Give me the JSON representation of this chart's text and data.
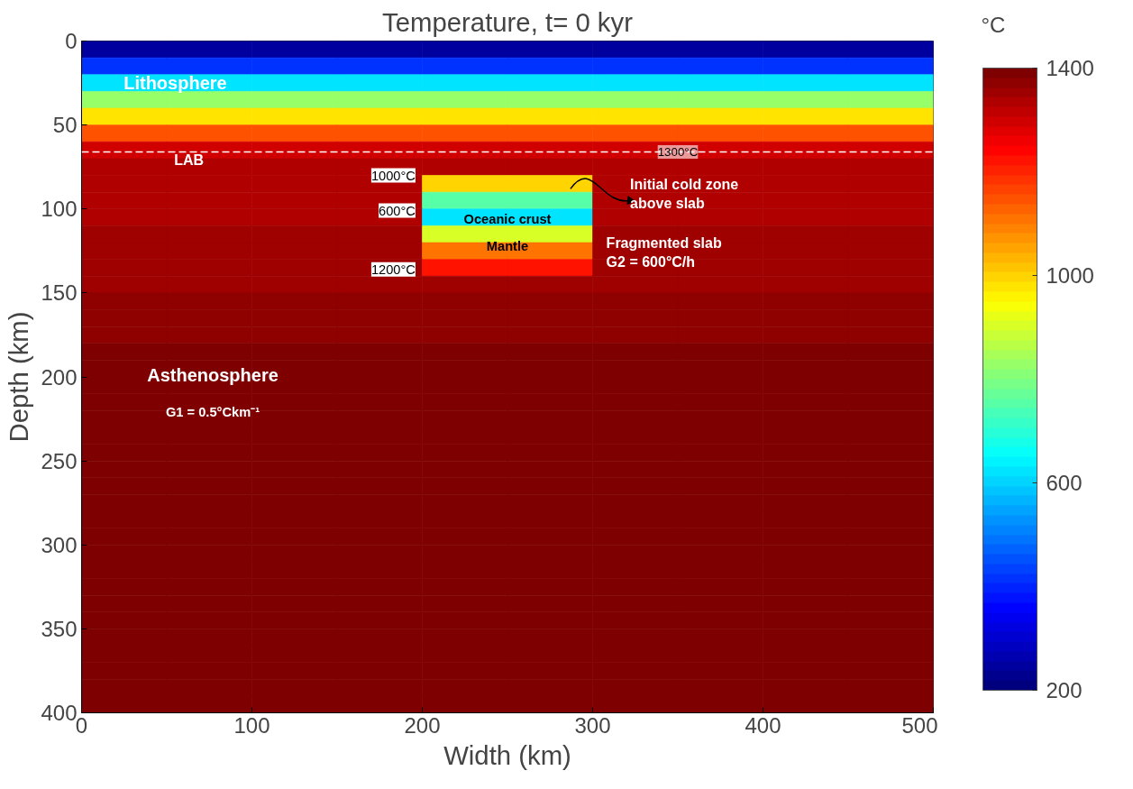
{
  "chart_data": {
    "type": "heatmap",
    "title": "Temperature, t= 0 kyr",
    "xlabel": "Width (km)",
    "ylabel": "Depth (km)",
    "clabel": "°C",
    "x": [
      25,
      75,
      125,
      175,
      225,
      275,
      325,
      375,
      425,
      475
    ],
    "y": [
      5,
      15,
      25,
      35,
      45,
      55,
      65,
      75,
      85,
      95,
      105,
      115,
      125,
      135,
      145,
      155,
      165,
      175,
      185,
      195,
      205,
      215,
      225,
      235,
      245,
      255,
      265,
      275,
      285,
      295,
      305,
      315,
      325,
      335,
      345,
      355,
      365,
      375,
      385,
      395
    ],
    "cells": [
      [
        250,
        250,
        250,
        250,
        250,
        250,
        250,
        250,
        250,
        250
      ],
      [
        420,
        420,
        420,
        420,
        420,
        420,
        420,
        420,
        420,
        420
      ],
      [
        620,
        620,
        620,
        620,
        620,
        620,
        620,
        620,
        620,
        620
      ],
      [
        820,
        820,
        820,
        820,
        820,
        820,
        820,
        820,
        820,
        820
      ],
      [
        980,
        980,
        980,
        980,
        980,
        980,
        980,
        980,
        980,
        980
      ],
      [
        1150,
        1150,
        1150,
        1150,
        1150,
        1150,
        1150,
        1150,
        1150,
        1150
      ],
      [
        1290,
        1290,
        1290,
        1290,
        1290,
        1290,
        1290,
        1290,
        1290,
        1290
      ],
      [
        1330,
        1330,
        1330,
        1330,
        1330,
        1330,
        1330,
        1330,
        1330,
        1330
      ],
      [
        1330,
        1330,
        1330,
        1330,
        1000,
        1000,
        1330,
        1330,
        1330,
        1330
      ],
      [
        1330,
        1330,
        1330,
        1330,
        750,
        750,
        1330,
        1330,
        1330,
        1330
      ],
      [
        1340,
        1340,
        1340,
        1340,
        620,
        620,
        1340,
        1340,
        1340,
        1340
      ],
      [
        1350,
        1350,
        1350,
        1350,
        900,
        900,
        1350,
        1350,
        1350,
        1350
      ],
      [
        1350,
        1350,
        1350,
        1350,
        1100,
        1100,
        1350,
        1350,
        1350,
        1350
      ],
      [
        1350,
        1350,
        1350,
        1350,
        1220,
        1220,
        1350,
        1350,
        1350,
        1350
      ],
      [
        1360,
        1360,
        1360,
        1360,
        1360,
        1360,
        1360,
        1360,
        1360,
        1360
      ],
      [
        1370,
        1370,
        1370,
        1370,
        1370,
        1370,
        1370,
        1370,
        1370,
        1370
      ],
      [
        1370,
        1370,
        1370,
        1370,
        1370,
        1370,
        1370,
        1370,
        1370,
        1370
      ],
      [
        1370,
        1370,
        1370,
        1370,
        1370,
        1370,
        1370,
        1370,
        1370,
        1370
      ],
      [
        1400,
        1400,
        1400,
        1400,
        1400,
        1400,
        1400,
        1400,
        1400,
        1400
      ],
      [
        1400,
        1400,
        1400,
        1400,
        1400,
        1400,
        1400,
        1400,
        1400,
        1400
      ],
      [
        1400,
        1400,
        1400,
        1400,
        1400,
        1400,
        1400,
        1400,
        1400,
        1400
      ],
      [
        1400,
        1400,
        1400,
        1400,
        1400,
        1400,
        1400,
        1400,
        1400,
        1400
      ],
      [
        1400,
        1400,
        1400,
        1400,
        1400,
        1400,
        1400,
        1400,
        1400,
        1400
      ],
      [
        1400,
        1400,
        1400,
        1400,
        1400,
        1400,
        1400,
        1400,
        1400,
        1400
      ],
      [
        1400,
        1400,
        1400,
        1400,
        1400,
        1400,
        1400,
        1400,
        1400,
        1400
      ],
      [
        1400,
        1400,
        1400,
        1400,
        1400,
        1400,
        1400,
        1400,
        1400,
        1400
      ],
      [
        1400,
        1400,
        1400,
        1400,
        1400,
        1400,
        1400,
        1400,
        1400,
        1400
      ],
      [
        1400,
        1400,
        1400,
        1400,
        1400,
        1400,
        1400,
        1400,
        1400,
        1400
      ],
      [
        1400,
        1400,
        1400,
        1400,
        1400,
        1400,
        1400,
        1400,
        1400,
        1400
      ],
      [
        1400,
        1400,
        1400,
        1400,
        1400,
        1400,
        1400,
        1400,
        1400,
        1400
      ],
      [
        1400,
        1400,
        1400,
        1400,
        1400,
        1400,
        1400,
        1400,
        1400,
        1400
      ],
      [
        1400,
        1400,
        1400,
        1400,
        1400,
        1400,
        1400,
        1400,
        1400,
        1400
      ],
      [
        1400,
        1400,
        1400,
        1400,
        1400,
        1400,
        1400,
        1400,
        1400,
        1400
      ],
      [
        1400,
        1400,
        1400,
        1400,
        1400,
        1400,
        1400,
        1400,
        1400,
        1400
      ],
      [
        1400,
        1400,
        1400,
        1400,
        1400,
        1400,
        1400,
        1400,
        1400,
        1400
      ],
      [
        1400,
        1400,
        1400,
        1400,
        1400,
        1400,
        1400,
        1400,
        1400,
        1400
      ],
      [
        1400,
        1400,
        1400,
        1400,
        1400,
        1400,
        1400,
        1400,
        1400,
        1400
      ],
      [
        1400,
        1400,
        1400,
        1400,
        1400,
        1400,
        1400,
        1400,
        1400,
        1400
      ],
      [
        1400,
        1400,
        1400,
        1400,
        1400,
        1400,
        1400,
        1400,
        1400,
        1400
      ],
      [
        1400,
        1400,
        1400,
        1400,
        1400,
        1400,
        1400,
        1400,
        1400,
        1400
      ]
    ],
    "clim": [
      200,
      1400
    ],
    "cticks": [
      200,
      600,
      1000,
      1400
    ],
    "xlim": [
      0,
      500
    ],
    "ylim": [
      400,
      0
    ],
    "xticks": [
      0,
      100,
      200,
      300,
      400,
      500
    ],
    "yticks": [
      0,
      50,
      100,
      150,
      200,
      250,
      300,
      350,
      400
    ],
    "grid": false,
    "ref_lines": [
      {
        "axis": "y",
        "value": 66,
        "label": "1300°C",
        "color": "#ffffff",
        "line_style": "dashed"
      }
    ],
    "annotations": [
      "Lithosphere",
      "LAB",
      "1000°C",
      "600°C",
      "1200°C",
      "Oceanic crust",
      "Mantle",
      "Initial cold zone\nabove slab",
      "Fragmented slab\nG2 = 600°C/h",
      "Asthenosphere",
      "G1 = 0.5°Ckm⁻¹"
    ]
  }
}
